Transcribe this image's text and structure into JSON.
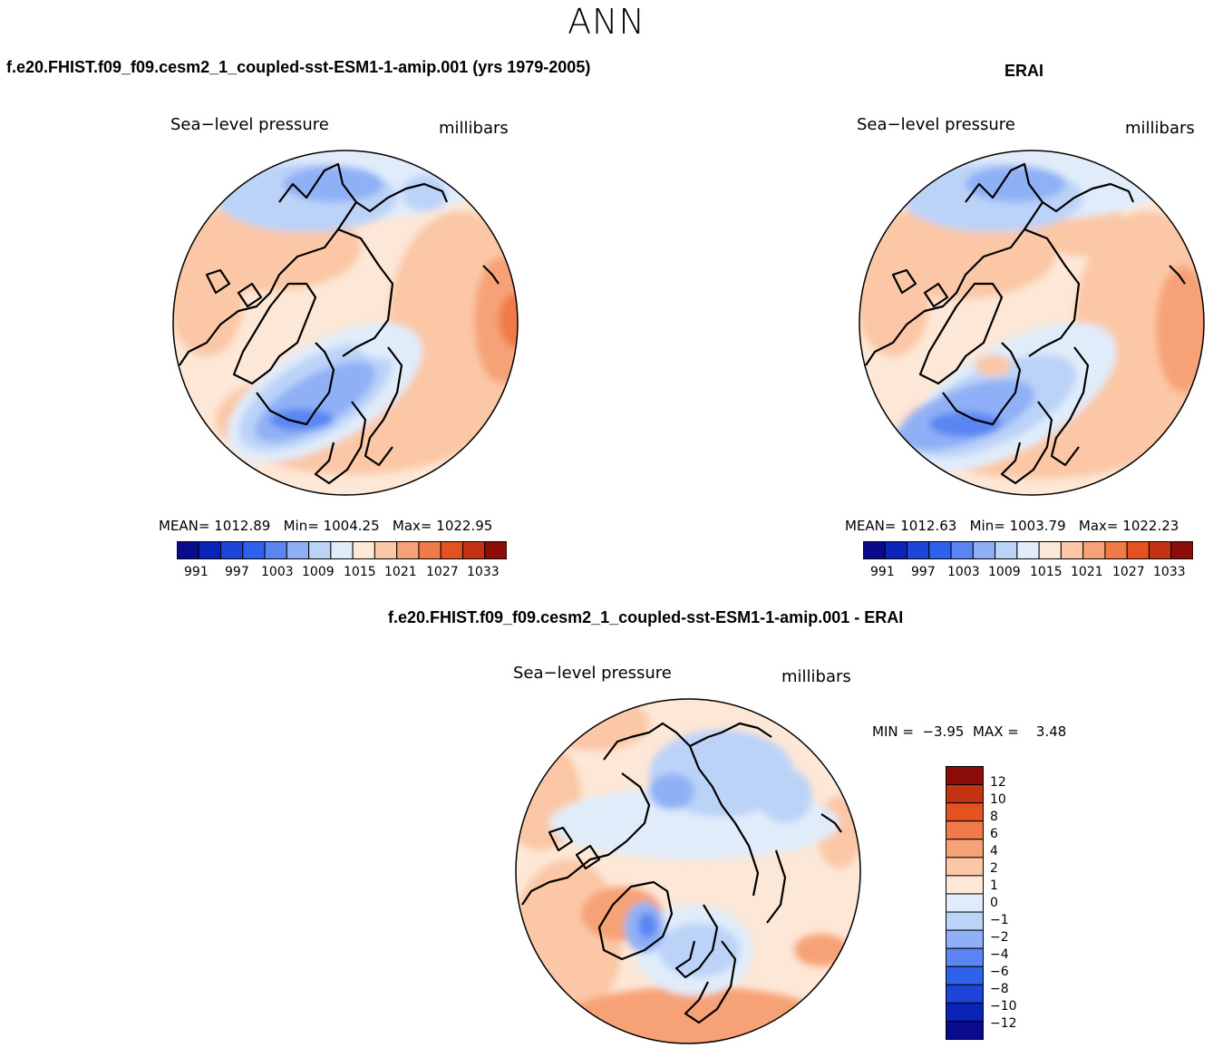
{
  "season": "ANN",
  "panels": [
    {
      "case_title": "f.e20.FHIST.f09_f09.cesm2_1_coupled-sst-ESM1-1-amip.001 (yrs 1979-2005)",
      "variable": "Sea−level pressure",
      "units": "millibars",
      "mean_label": "MEAN=",
      "mean": "1012.89",
      "min_label": "Min=",
      "min": "1004.25",
      "max_label": "Max=",
      "max": "1022.95"
    },
    {
      "case_title": "ERAI",
      "variable": "Sea−level pressure",
      "units": "millibars",
      "mean_label": "MEAN=",
      "mean": "1012.63",
      "min_label": "Min=",
      "min": "1003.79",
      "max_label": "Max=",
      "max": "1022.23"
    }
  ],
  "abs_colorbar": {
    "colors": [
      "#0a0a8c",
      "#0b24b8",
      "#1f45d8",
      "#2f62ec",
      "#5a85f2",
      "#8fb0f6",
      "#bcd3f8",
      "#e0ecfa",
      "#fde7d6",
      "#fbc7a6",
      "#f7a276",
      "#f07a48",
      "#e4521f",
      "#c43211",
      "#8b0d0a"
    ],
    "labels": [
      "991",
      "997",
      "1003",
      "1009",
      "1015",
      "1021",
      "1027",
      "1033"
    ]
  },
  "diff_panel": {
    "title": "f.e20.FHIST.f09_f09.cesm2_1_coupled-sst-ESM1-1-amip.001 - ERAI",
    "variable": "Sea−level pressure",
    "units": "millibars",
    "min_label": "MIN =",
    "min": "−3.95",
    "max_label": "MAX =",
    "max": "3.48"
  },
  "diff_colorbar": {
    "colors": [
      "#8b0d0a",
      "#c43211",
      "#e4521f",
      "#f07a48",
      "#f7a276",
      "#fbc7a6",
      "#fde7d6",
      "#e0ecfa",
      "#bcd3f8",
      "#8fb0f6",
      "#5a85f2",
      "#2f62ec",
      "#1f45d8",
      "#0b24b8",
      "#0a0a8c"
    ],
    "labels": [
      "12",
      "10",
      "8",
      "6",
      "4",
      "2",
      "1",
      "0",
      "−1",
      "−2",
      "−4",
      "−6",
      "−8",
      "−10",
      "−12"
    ]
  }
}
